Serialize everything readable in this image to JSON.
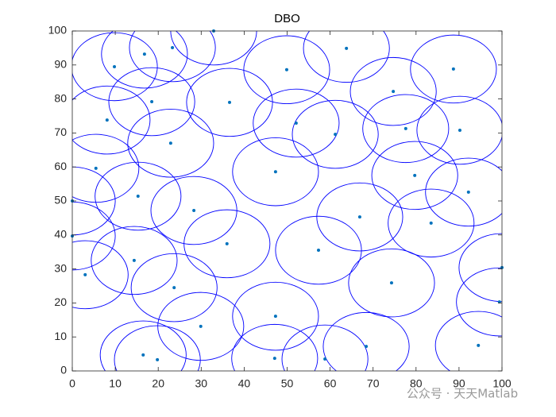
{
  "chart_data": {
    "type": "scatter",
    "title": "DBO",
    "x": [
      32.9,
      16.8,
      23.3,
      9.8,
      63.8,
      49.9,
      88.7,
      74.7,
      18.5,
      36.6,
      8.1,
      52.1,
      77.6,
      90.2,
      61.2,
      22.9,
      5.5,
      47.3,
      79.7,
      92.2,
      15.3,
      0,
      28.3,
      66.9,
      83.5,
      0,
      36,
      57.3,
      14.4,
      3,
      100,
      74.3,
      23.7,
      99.4,
      29.9,
      47.3,
      94.5,
      68.4,
      16.5,
      19.8,
      47.1,
      58.8
    ],
    "y": [
      100,
      93.2,
      95.1,
      89.5,
      94.9,
      88.6,
      88.8,
      82.2,
      79.2,
      79,
      73.8,
      72.9,
      71.3,
      70.8,
      69.6,
      67,
      59.6,
      58.6,
      57.5,
      52.6,
      51.4,
      50,
      47.2,
      45.3,
      43.5,
      39.7,
      37.4,
      35.5,
      32.5,
      28.3,
      30.4,
      25.9,
      24.5,
      20.3,
      13.1,
      16.1,
      7.5,
      7.2,
      4.7,
      3.3,
      3.7,
      3.5
    ],
    "radius": 10,
    "point_color": "#0072bd",
    "circle_color": "#0000ff",
    "xlim": [
      0,
      100
    ],
    "ylim": [
      0,
      100
    ],
    "xticks": [
      0,
      10,
      20,
      30,
      40,
      50,
      60,
      70,
      80,
      90,
      100
    ],
    "yticks": [
      0,
      10,
      20,
      30,
      40,
      50,
      60,
      70,
      80,
      90,
      100
    ],
    "watermark": "公众号 · 天天Matlab"
  }
}
